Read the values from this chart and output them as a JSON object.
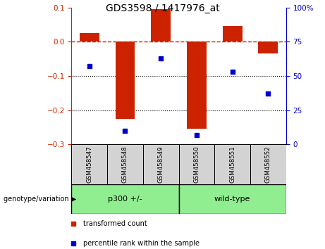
{
  "title": "GDS3598 / 1417976_at",
  "samples": [
    "GSM458547",
    "GSM458548",
    "GSM458549",
    "GSM458550",
    "GSM458551",
    "GSM458552"
  ],
  "bar_values": [
    0.025,
    -0.225,
    0.095,
    -0.255,
    0.045,
    -0.035
  ],
  "percentile_values": [
    57,
    10,
    63,
    7,
    53,
    37
  ],
  "group_configs": [
    {
      "start": 0,
      "end": 2,
      "label": "p300 +/-",
      "color": "#90EE90"
    },
    {
      "start": 3,
      "end": 5,
      "label": "wild-type",
      "color": "#90EE90"
    }
  ],
  "group_label": "genotype/variation",
  "bar_color": "#cc2200",
  "point_color": "#0000cd",
  "left_ylim": [
    -0.3,
    0.1
  ],
  "right_ylim": [
    0,
    100
  ],
  "left_yticks": [
    -0.3,
    -0.2,
    -0.1,
    0.0,
    0.1
  ],
  "right_yticks": [
    0,
    25,
    50,
    75,
    100
  ],
  "dotted_lines": [
    -0.1,
    -0.2
  ],
  "legend_items": [
    {
      "label": "transformed count",
      "color": "#cc2200"
    },
    {
      "label": "percentile rank within the sample",
      "color": "#0000cd"
    }
  ],
  "bar_width": 0.55,
  "background_color": "#ffffff",
  "tick_color_left": "#cc2200",
  "tick_color_right": "#0000cd",
  "sample_box_color": "#d3d3d3",
  "title_fontsize": 10
}
